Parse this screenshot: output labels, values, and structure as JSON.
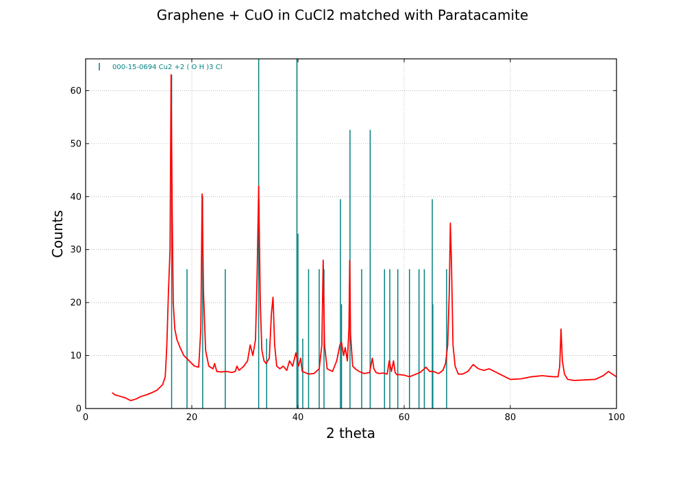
{
  "chart_data": {
    "type": "line",
    "title": "Graphene + CuO in CuCl2 matched with Paratacamite",
    "xlabel": "2 theta",
    "ylabel": "Counts",
    "xlim": [
      0,
      100
    ],
    "ylim": [
      0,
      66
    ],
    "xticks": [
      0,
      20,
      40,
      60,
      80,
      100
    ],
    "yticks": [
      0,
      10,
      20,
      30,
      40,
      50,
      60
    ],
    "grid": true,
    "legend_position": "top-left",
    "colors": {
      "pattern": "#ff0000",
      "reference": "#008080",
      "grid": "#888888"
    },
    "series": [
      {
        "type": "line",
        "color": "#ff0000",
        "x": [
          5.0,
          5.5,
          6.5,
          7.5,
          8.5,
          9.5,
          10.5,
          11.5,
          12.5,
          13.5,
          14.5,
          15.0,
          15.3,
          15.6,
          15.9,
          16.1,
          16.3,
          16.5,
          16.8,
          17.2,
          17.8,
          18.5,
          19.5,
          20.5,
          21.3,
          21.7,
          21.95,
          22.2,
          22.6,
          23.2,
          24.0,
          24.3,
          24.7,
          25.5,
          26.5,
          27.5,
          28.2,
          28.5,
          28.9,
          29.8,
          30.5,
          31.0,
          31.5,
          32.0,
          32.3,
          32.6,
          32.9,
          33.2,
          33.6,
          34.0,
          34.6,
          35.0,
          35.3,
          35.6,
          36.0,
          36.6,
          37.2,
          37.9,
          38.4,
          39.0,
          39.6,
          40.1,
          40.5,
          40.8,
          41.3,
          42.0,
          43.0,
          44.0,
          44.5,
          44.75,
          45.0,
          45.5,
          46.5,
          47.3,
          47.9,
          48.2,
          48.6,
          48.9,
          49.3,
          49.6,
          49.75,
          49.9,
          50.3,
          50.8,
          51.5,
          52.5,
          53.5,
          54.0,
          54.3,
          54.7,
          55.3,
          56.0,
          56.8,
          57.2,
          57.6,
          58.0,
          58.3,
          58.6,
          59.2,
          60.0,
          61.0,
          62.0,
          63.0,
          63.6,
          64.1,
          64.8,
          65.5,
          66.5,
          67.3,
          67.8,
          68.2,
          68.5,
          68.7,
          68.9,
          69.2,
          69.6,
          70.2,
          71.0,
          72.0,
          73.0,
          74.0,
          75.0,
          76.0,
          77.0,
          78.0,
          79.0,
          80.0,
          82.0,
          84.0,
          86.0,
          88.0,
          89.0,
          89.3,
          89.55,
          89.8,
          90.2,
          90.8,
          92.0,
          94.0,
          96.0,
          97.5,
          98.5,
          99.2,
          100.0
        ],
        "y": [
          3.0,
          2.6,
          2.3,
          2.0,
          1.5,
          1.8,
          2.3,
          2.6,
          3.0,
          3.5,
          4.5,
          6.0,
          12.0,
          22.0,
          30.0,
          63.0,
          38.0,
          20.0,
          15.0,
          13.0,
          11.5,
          10.0,
          9.0,
          8.0,
          7.8,
          15.0,
          40.5,
          22.0,
          11.0,
          8.0,
          7.5,
          8.5,
          7.0,
          6.9,
          7.0,
          6.8,
          7.0,
          8.0,
          7.2,
          8.0,
          9.0,
          12.0,
          10.0,
          13.0,
          25.0,
          42.0,
          20.0,
          11.0,
          9.0,
          8.5,
          9.5,
          18.0,
          21.0,
          12.0,
          8.0,
          7.5,
          8.0,
          7.2,
          9.0,
          8.0,
          10.5,
          8.0,
          9.5,
          7.0,
          6.8,
          6.5,
          6.6,
          7.5,
          12.0,
          28.0,
          12.0,
          7.5,
          7.0,
          9.0,
          12.0,
          12.5,
          10.0,
          11.5,
          9.0,
          15.0,
          28.0,
          14.0,
          8.0,
          7.5,
          7.0,
          6.6,
          6.8,
          9.5,
          7.5,
          6.8,
          6.6,
          6.7,
          6.5,
          9.0,
          7.0,
          9.0,
          6.8,
          6.4,
          6.4,
          6.3,
          6.0,
          6.4,
          6.8,
          7.3,
          7.8,
          7.0,
          7.0,
          6.6,
          7.2,
          8.5,
          12.0,
          22.0,
          35.0,
          28.0,
          12.0,
          8.0,
          6.5,
          6.5,
          7.0,
          8.3,
          7.5,
          7.2,
          7.5,
          7.0,
          6.5,
          6.0,
          5.5,
          5.6,
          6.0,
          6.2,
          6.0,
          6.0,
          8.0,
          15.0,
          9.0,
          6.5,
          5.5,
          5.3,
          5.4,
          5.5,
          6.2,
          7.0,
          6.5,
          6.0
        ]
      },
      {
        "name": "000-15-0694 Cu2 +2 ( O H )3 Cl",
        "type": "stick",
        "color": "#008080",
        "x": [
          16.2,
          19.1,
          22.05,
          26.3,
          32.6,
          34.1,
          39.8,
          40.0,
          40.9,
          42.0,
          44.0,
          44.9,
          48.0,
          48.2,
          49.8,
          52.0,
          53.6,
          56.3,
          57.3,
          58.8,
          61.0,
          62.8,
          63.8,
          65.3,
          65.4,
          68.0
        ],
        "y": [
          63.0,
          26.3,
          40.0,
          26.3,
          66.0,
          13.2,
          66.0,
          33.0,
          13.2,
          26.3,
          26.3,
          26.3,
          39.5,
          19.7,
          52.6,
          26.3,
          52.6,
          26.3,
          26.3,
          26.3,
          26.3,
          26.3,
          26.3,
          39.5,
          19.7,
          26.3
        ]
      }
    ]
  }
}
